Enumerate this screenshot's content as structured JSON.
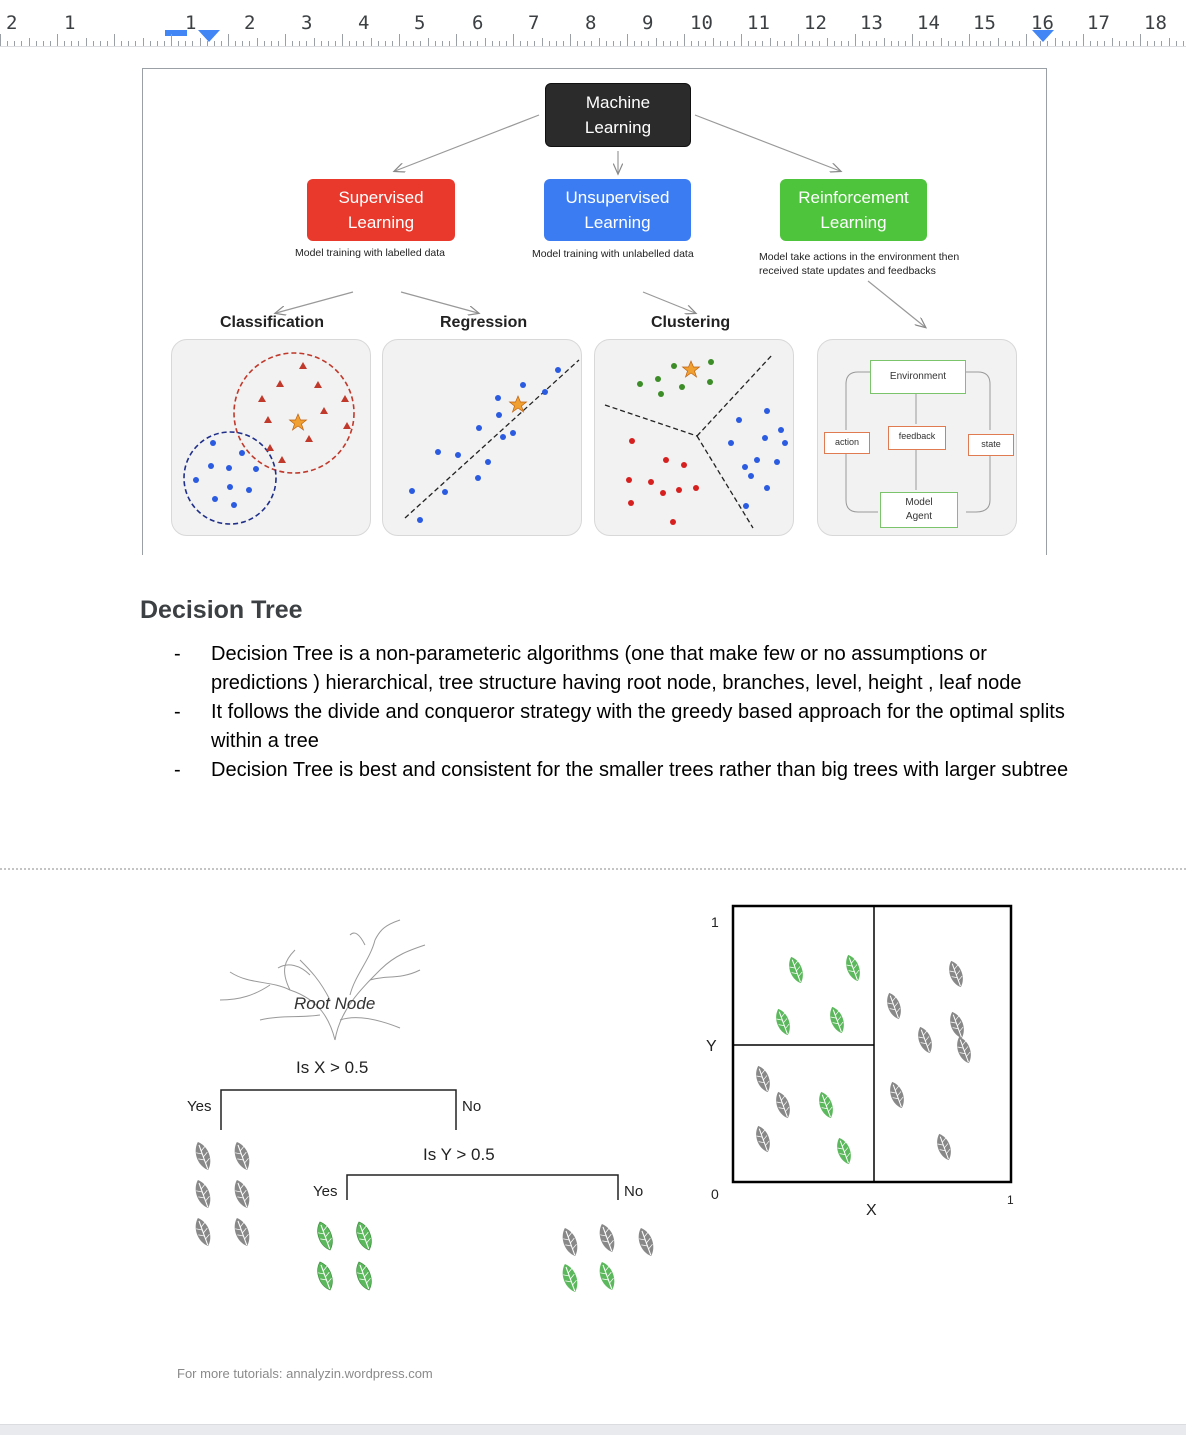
{
  "ruler": {
    "labels": [
      "2",
      "1",
      "1",
      "2",
      "3",
      "4",
      "5",
      "6",
      "7",
      "8",
      "9",
      "10",
      "11",
      "12",
      "13",
      "14",
      "15",
      "16",
      "17",
      "18"
    ]
  },
  "ml_diagram": {
    "root": "Machine Learning",
    "branches": [
      {
        "label": "Supervised Learning",
        "caption": "Model training with labelled data",
        "color": "#e8392c"
      },
      {
        "label": "Unsupervised Learning",
        "caption": "Model training with unlabelled data",
        "color": "#3c7cf2"
      },
      {
        "label": "Reinforcement Learning",
        "caption": "Model take actions in the environment then received state updates and feedbacks",
        "color": "#4dc43b"
      }
    ],
    "subtopics": [
      "Classification",
      "Regression",
      "Clustering"
    ],
    "rl_loop": {
      "environment": "Environment",
      "feedback": "feedback",
      "action": "action",
      "state": "state",
      "agent": "Model Agent"
    }
  },
  "section": {
    "heading": "Decision Tree",
    "bullets": [
      "Decision Tree is a non-parameteric algorithms (one that make few or no assumptions or predictions ) hierarchical, tree structure having root node, branches, level, height , leaf node",
      "It follows the divide and conqueror strategy with the greedy based approach for the optimal splits within a tree",
      "Decision Tree is best and consistent for the smaller trees rather than big trees with larger subtree"
    ],
    "bullet_marker": "-"
  },
  "tree_diagram": {
    "root_label": "Root Node",
    "split1": "Is X > 0.5",
    "split1_yes": "Yes",
    "split1_no": "No",
    "split2": "Is Y > 0.5",
    "split2_yes": "Yes",
    "split2_no": "No",
    "credit": "For more tutorials: annalyzin.wordpress.com",
    "axis_y_top": "1",
    "axis_y_label": "Y",
    "axis_origin": "0",
    "axis_x_label": "X",
    "axis_x_right": "1",
    "leaf_colors": {
      "green": "#5cb85c",
      "gray": "#8a8a8a"
    }
  }
}
